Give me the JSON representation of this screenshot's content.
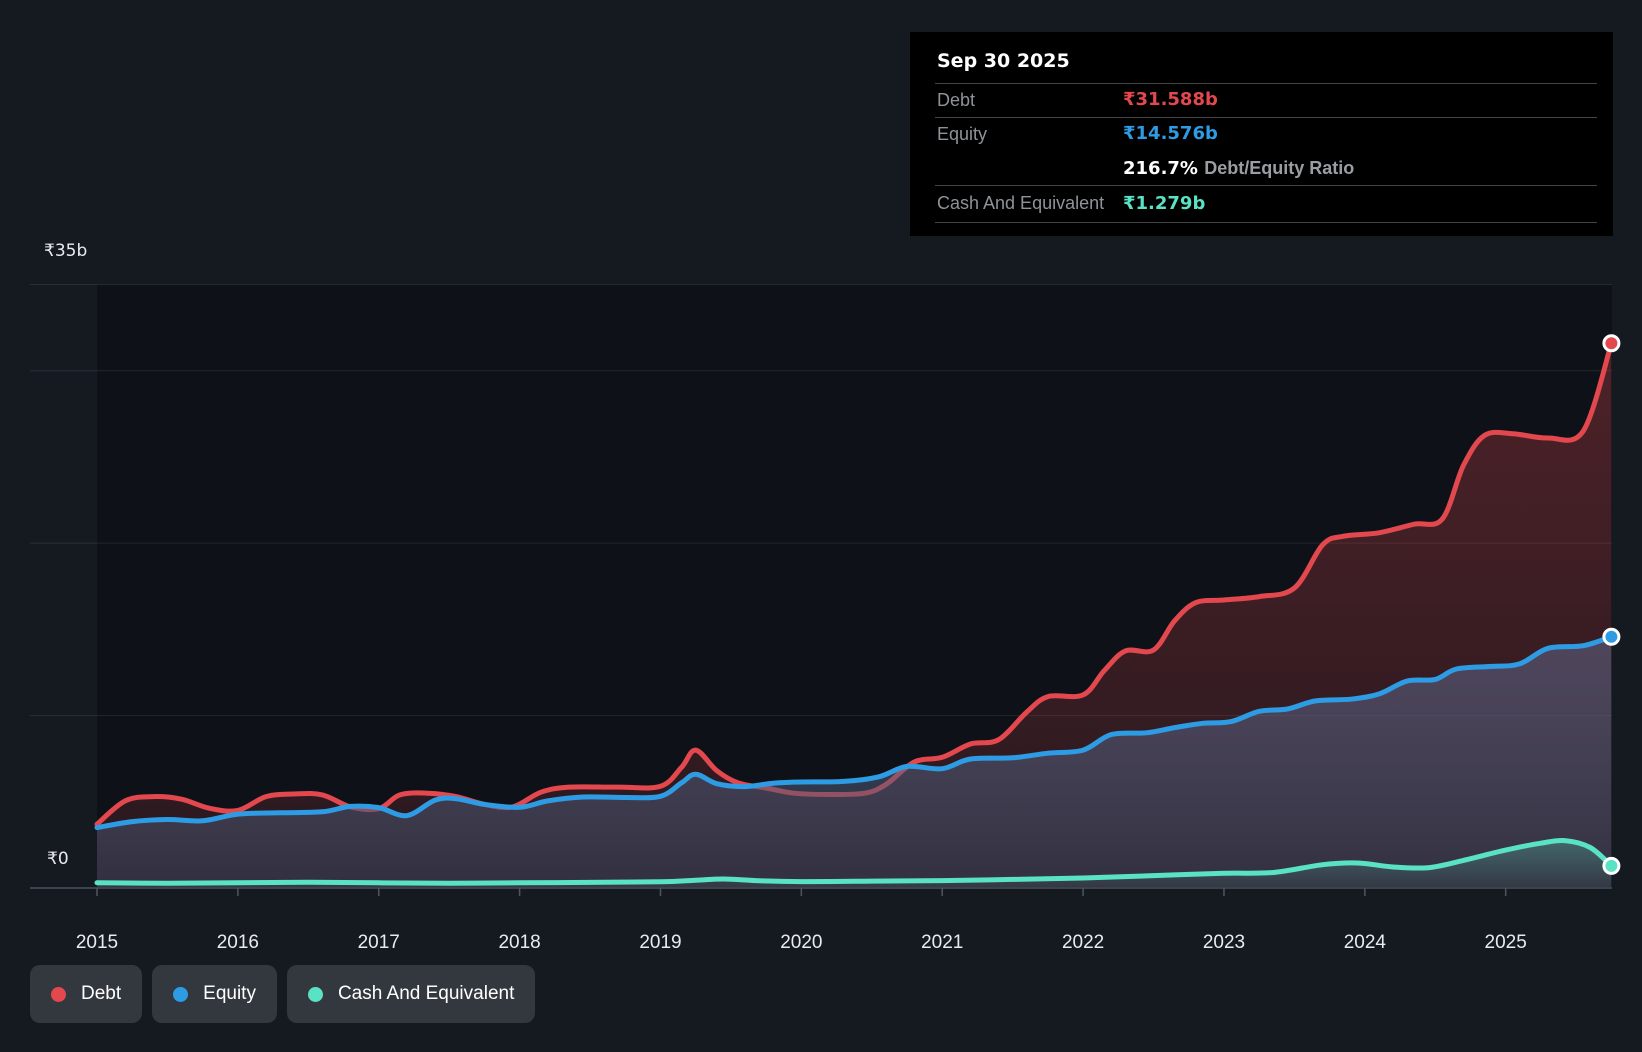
{
  "page": {
    "background": "#151a21",
    "plot_shade": "rgba(3,6,10,0.35)",
    "grid_color": "rgba(255,255,255,0.09)",
    "axis_color": "#3d434b",
    "tick_color": "#4f555d"
  },
  "tooltip": {
    "date": "Sep 30 2025",
    "debt": {
      "label": "Debt",
      "value": "₹31.588b"
    },
    "equity": {
      "label": "Equity",
      "value": "₹14.576b"
    },
    "ratio": {
      "value": "216.7%",
      "label": "Debt/Equity Ratio"
    },
    "cash": {
      "label": "Cash And Equivalent",
      "value": "₹1.279b"
    }
  },
  "legend": [
    {
      "label": "Debt",
      "color": "#e2484e"
    },
    {
      "label": "Equity",
      "color": "#2e9ce4"
    },
    {
      "label": "Cash And Equivalent",
      "color": "#5ae2c4"
    }
  ],
  "chart_data": {
    "type": "area",
    "title": "Debt to Equity History",
    "unit": "₹ billions (INR)",
    "as_of": "Sep 30 2025",
    "x_range": [
      2015,
      2025.75
    ],
    "x_ticks": [
      "2015",
      "2016",
      "2017",
      "2018",
      "2019",
      "2020",
      "2021",
      "2022",
      "2023",
      "2024",
      "2025"
    ],
    "y_axis": {
      "min": 0,
      "max": 35,
      "max_label": "₹35b",
      "zero_label": "₹0",
      "gridline_values": [
        35,
        30,
        20,
        10
      ]
    },
    "series": [
      {
        "name": "Debt",
        "color": "#e2484e",
        "end_value": 31.588,
        "points": [
          [
            2015.0,
            3.7
          ],
          [
            2015.2,
            5.05
          ],
          [
            2015.4,
            5.3
          ],
          [
            2015.6,
            5.15
          ],
          [
            2015.8,
            4.62
          ],
          [
            2016.0,
            4.5
          ],
          [
            2016.2,
            5.3
          ],
          [
            2016.4,
            5.45
          ],
          [
            2016.6,
            5.4
          ],
          [
            2016.8,
            4.7
          ],
          [
            2017.0,
            4.6
          ],
          [
            2017.15,
            5.4
          ],
          [
            2017.35,
            5.5
          ],
          [
            2017.55,
            5.3
          ],
          [
            2017.75,
            4.85
          ],
          [
            2017.95,
            4.7
          ],
          [
            2018.15,
            5.55
          ],
          [
            2018.35,
            5.85
          ],
          [
            2018.7,
            5.85
          ],
          [
            2019.0,
            5.9
          ],
          [
            2019.15,
            7.0
          ],
          [
            2019.25,
            8.0
          ],
          [
            2019.4,
            6.8
          ],
          [
            2019.55,
            6.1
          ],
          [
            2019.75,
            5.8
          ],
          [
            2019.95,
            5.5
          ],
          [
            2020.2,
            5.42
          ],
          [
            2020.45,
            5.5
          ],
          [
            2020.6,
            6.0
          ],
          [
            2020.8,
            7.3
          ],
          [
            2021.0,
            7.58
          ],
          [
            2021.2,
            8.35
          ],
          [
            2021.4,
            8.6
          ],
          [
            2021.6,
            10.2
          ],
          [
            2021.75,
            11.1
          ],
          [
            2022.0,
            11.2
          ],
          [
            2022.15,
            12.6
          ],
          [
            2022.3,
            13.75
          ],
          [
            2022.5,
            13.8
          ],
          [
            2022.65,
            15.5
          ],
          [
            2022.8,
            16.55
          ],
          [
            2023.0,
            16.7
          ],
          [
            2023.25,
            16.9
          ],
          [
            2023.5,
            17.4
          ],
          [
            2023.7,
            19.9
          ],
          [
            2023.85,
            20.4
          ],
          [
            2024.1,
            20.6
          ],
          [
            2024.35,
            21.1
          ],
          [
            2024.55,
            21.4
          ],
          [
            2024.7,
            24.5
          ],
          [
            2024.85,
            26.25
          ],
          [
            2025.05,
            26.35
          ],
          [
            2025.3,
            26.1
          ],
          [
            2025.55,
            26.5
          ],
          [
            2025.75,
            31.588
          ]
        ]
      },
      {
        "name": "Equity",
        "color": "#2e9ce4",
        "end_value": 14.576,
        "points": [
          [
            2015.0,
            3.5
          ],
          [
            2015.25,
            3.85
          ],
          [
            2015.5,
            3.97
          ],
          [
            2015.75,
            3.9
          ],
          [
            2016.0,
            4.28
          ],
          [
            2016.3,
            4.36
          ],
          [
            2016.6,
            4.42
          ],
          [
            2016.8,
            4.73
          ],
          [
            2017.0,
            4.66
          ],
          [
            2017.2,
            4.2
          ],
          [
            2017.4,
            5.1
          ],
          [
            2017.55,
            5.18
          ],
          [
            2017.75,
            4.85
          ],
          [
            2018.0,
            4.68
          ],
          [
            2018.2,
            5.05
          ],
          [
            2018.45,
            5.28
          ],
          [
            2018.75,
            5.25
          ],
          [
            2019.0,
            5.32
          ],
          [
            2019.15,
            6.1
          ],
          [
            2019.25,
            6.6
          ],
          [
            2019.4,
            6.05
          ],
          [
            2019.6,
            5.88
          ],
          [
            2019.8,
            6.08
          ],
          [
            2020.0,
            6.15
          ],
          [
            2020.3,
            6.18
          ],
          [
            2020.55,
            6.45
          ],
          [
            2020.75,
            7.05
          ],
          [
            2021.0,
            6.92
          ],
          [
            2021.2,
            7.48
          ],
          [
            2021.5,
            7.55
          ],
          [
            2021.75,
            7.82
          ],
          [
            2022.0,
            8.0
          ],
          [
            2022.2,
            8.9
          ],
          [
            2022.45,
            9.0
          ],
          [
            2022.65,
            9.3
          ],
          [
            2022.85,
            9.55
          ],
          [
            2023.05,
            9.65
          ],
          [
            2023.25,
            10.25
          ],
          [
            2023.45,
            10.38
          ],
          [
            2023.65,
            10.85
          ],
          [
            2023.9,
            10.95
          ],
          [
            2024.1,
            11.25
          ],
          [
            2024.3,
            12.0
          ],
          [
            2024.5,
            12.1
          ],
          [
            2024.65,
            12.7
          ],
          [
            2024.9,
            12.85
          ],
          [
            2025.1,
            13.0
          ],
          [
            2025.3,
            13.9
          ],
          [
            2025.55,
            14.05
          ],
          [
            2025.75,
            14.576
          ]
        ]
      },
      {
        "name": "Cash And Equivalent",
        "color": "#5ae2c4",
        "end_value": 1.279,
        "points": [
          [
            2015.0,
            0.3
          ],
          [
            2015.5,
            0.28
          ],
          [
            2016.0,
            0.3
          ],
          [
            2016.5,
            0.33
          ],
          [
            2017.0,
            0.3
          ],
          [
            2017.5,
            0.28
          ],
          [
            2018.0,
            0.3
          ],
          [
            2018.6,
            0.33
          ],
          [
            2019.0,
            0.36
          ],
          [
            2019.25,
            0.45
          ],
          [
            2019.45,
            0.52
          ],
          [
            2019.7,
            0.42
          ],
          [
            2020.0,
            0.37
          ],
          [
            2020.5,
            0.4
          ],
          [
            2021.0,
            0.43
          ],
          [
            2021.5,
            0.5
          ],
          [
            2022.0,
            0.58
          ],
          [
            2022.5,
            0.72
          ],
          [
            2023.0,
            0.85
          ],
          [
            2023.35,
            0.9
          ],
          [
            2023.7,
            1.35
          ],
          [
            2023.95,
            1.45
          ],
          [
            2024.2,
            1.22
          ],
          [
            2024.45,
            1.18
          ],
          [
            2024.7,
            1.6
          ],
          [
            2025.0,
            2.2
          ],
          [
            2025.25,
            2.6
          ],
          [
            2025.42,
            2.75
          ],
          [
            2025.6,
            2.35
          ],
          [
            2025.75,
            1.279
          ]
        ]
      }
    ]
  }
}
